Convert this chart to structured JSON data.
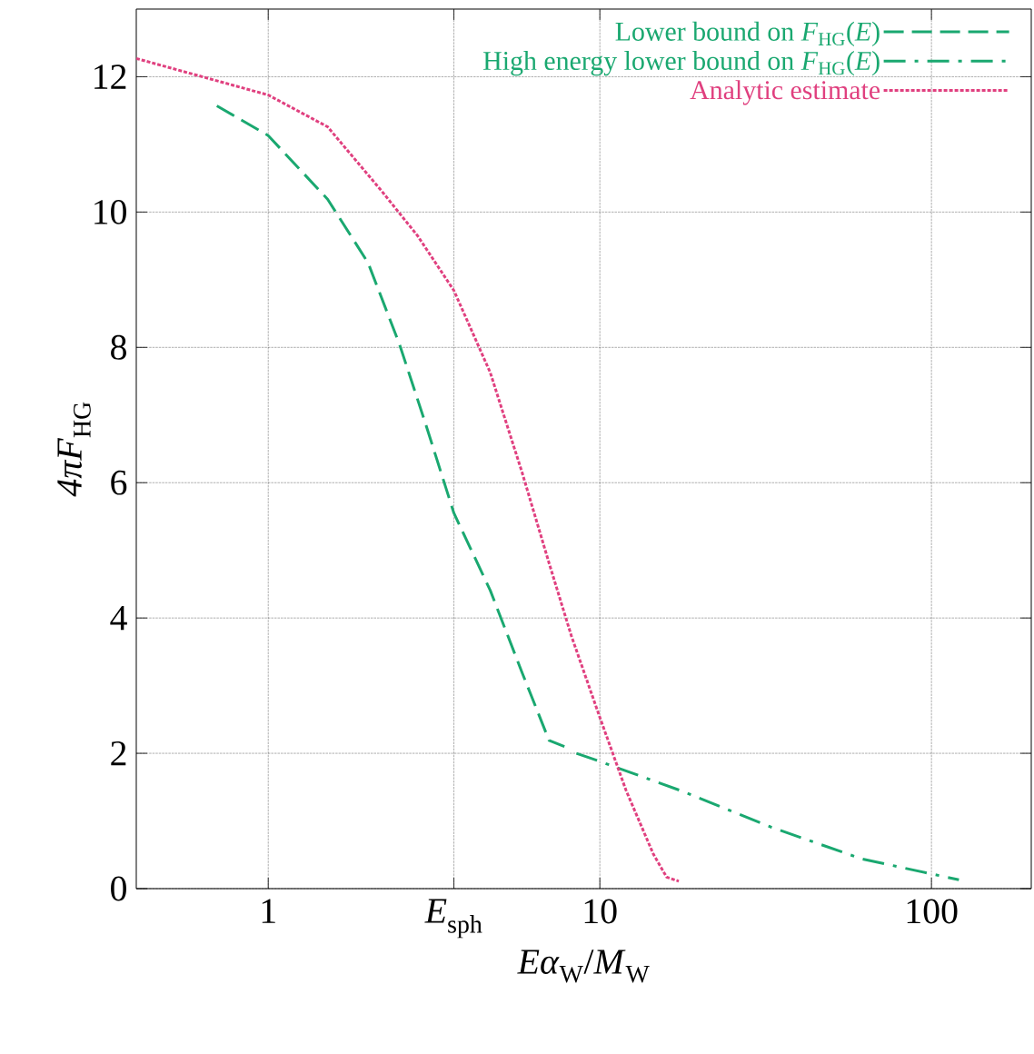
{
  "chart_data": {
    "type": "line",
    "xlabel": "*Eα*$_{W}$/*M*$_{W}$",
    "ylabel": "*4πF*$_{HG}$",
    "log": "x",
    "grid": true,
    "legend": "top right",
    "xlim": [
      0.4,
      200
    ],
    "ylim": [
      0,
      13
    ],
    "xticks": [
      1,
      {
        "value": 3.63,
        "label": "*E*$_{sph}$"
      },
      10,
      100
    ],
    "yticks": [
      0,
      2,
      4,
      6,
      8,
      10,
      12
    ],
    "series": [
      {
        "name": "Lower bound on *F*$_{HG}$(*E*)",
        "color": "#1aa870",
        "line_style": "dashed",
        "x": [
          0.7,
          1,
          1.51,
          2.0,
          2.49,
          3.0,
          3.63,
          4.67,
          5.82,
          7.03,
          7.82
        ],
        "values": [
          11.57,
          11.13,
          10.19,
          9.25,
          8.04,
          6.83,
          5.55,
          4.41,
          3.2,
          2.19,
          2.1
        ]
      },
      {
        "name": "High energy lower bound on *F*$_{HG}$(*E*)",
        "color": "#1aa870",
        "line_style": "dashdot",
        "x": [
          8.5,
          10,
          17.5,
          32.8,
          61.6,
          121
        ],
        "values": [
          2.0,
          1.88,
          1.45,
          0.91,
          0.44,
          0.13
        ]
      },
      {
        "name": "Analytic estimate",
        "color": "#e0407f",
        "line_style": "dotted",
        "x": [
          0.4,
          1,
          1.51,
          2.19,
          2.82,
          3.63,
          4.67,
          5.82,
          7.03,
          8.2,
          10,
          12.0,
          14.5,
          15.9,
          17.3
        ],
        "values": [
          12.27,
          11.73,
          11.26,
          10.32,
          9.65,
          8.84,
          7.63,
          6.16,
          4.81,
          3.74,
          2.53,
          1.45,
          0.51,
          0.17,
          0.11
        ]
      }
    ]
  }
}
